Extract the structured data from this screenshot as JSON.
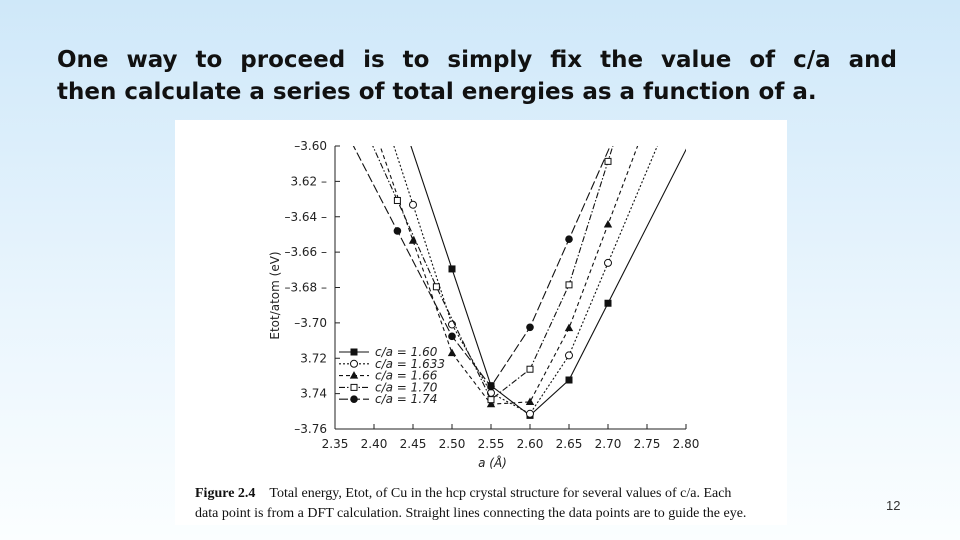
{
  "slide": {
    "title_line1": "One way to proceed is to simply fix the value of c/a and",
    "title_line2": "then calculate a series of total energies as a function of a.",
    "page_number": "12"
  },
  "caption": {
    "label": "Figure 2.4",
    "line1": "Total energy, Etot, of Cu in the hcp crystal structure for several values of c/a. Each",
    "line2": "data point is from a DFT calculation. Straight lines connecting the data points are to guide the eye."
  },
  "chart_data": {
    "type": "line",
    "xlabel": "a (Å)",
    "ylabel": "Etot/atom (eV)",
    "xlim": [
      2.35,
      2.8
    ],
    "ylim": [
      -3.76,
      -3.6
    ],
    "x_ticks": [
      "2.35",
      "2.40",
      "2.45",
      "2.50",
      "2.55",
      "2.60",
      "2.65",
      "2.70",
      "2.75",
      "2.80"
    ],
    "y_ticks": [
      "–3.60",
      "3.62 –",
      "–3.64 –",
      "–3.66 –",
      "–3.68 –",
      "–3.70",
      "3.72",
      "3.74",
      "–3.76"
    ],
    "grid": false,
    "legend_position": "bottom-left",
    "series": [
      {
        "name": "c/a = 1.60",
        "marker": "filled-square",
        "dash": "solid",
        "x": [
          2.5,
          2.55,
          2.6,
          2.65,
          2.7
        ],
        "y": [
          -3.6695,
          -3.7355,
          -3.7523,
          -3.7323,
          -3.6889
        ]
      },
      {
        "name": "c/a = 1.633",
        "marker": "open-circle",
        "dash": "dotted",
        "x": [
          2.45,
          2.5,
          2.55,
          2.6,
          2.65,
          2.7
        ],
        "y": [
          -3.6332,
          -3.7009,
          -3.7396,
          -3.7514,
          -3.7184,
          -3.6661
        ]
      },
      {
        "name": "c/a = 1.66",
        "marker": "filled-triangle",
        "dash": "dashed",
        "x": [
          2.45,
          2.5,
          2.55,
          2.6,
          2.65,
          2.7
        ],
        "y": [
          -3.6536,
          -3.7171,
          -3.746,
          -3.7447,
          -3.703,
          -3.6444
        ]
      },
      {
        "name": "c/a = 1.70",
        "marker": "open-square",
        "dash": "dash-dot",
        "x": [
          2.43,
          2.48,
          2.55,
          2.6,
          2.65,
          2.7
        ],
        "y": [
          -3.6308,
          -3.6796,
          -3.7434,
          -3.7262,
          -3.6785,
          -3.6087
        ]
      },
      {
        "name": "c/a = 1.74",
        "marker": "filled-circle",
        "dash": "long-dash",
        "x": [
          2.43,
          2.5,
          2.55,
          2.6,
          2.65
        ],
        "y": [
          -3.648,
          -3.7076,
          -3.736,
          -3.7025,
          -3.6527
        ]
      }
    ]
  }
}
